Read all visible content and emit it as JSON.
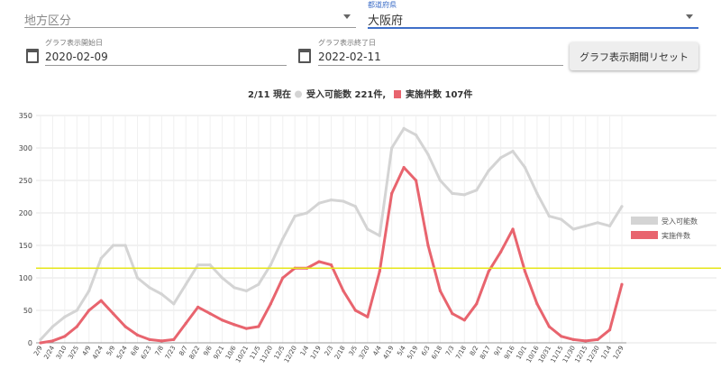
{
  "form": {
    "region": "地方区分",
    "prefecture_label": "都道府県",
    "prefecture": "大阪府",
    "start_label": "グラフ表示開始日",
    "start": "2020-02-09",
    "end_label": "グラフ表示終了日",
    "end": "2022-02-11",
    "reset_button": "グラフ表示期間リセット"
  },
  "chart_data": {
    "type": "line",
    "title": "2/11 現在",
    "summary": [
      "受入可能数 221件,",
      "実施件数 107件"
    ],
    "categories": [
      "2/9",
      "2/24",
      "3/10",
      "3/25",
      "4/9",
      "4/24",
      "5/9",
      "5/24",
      "6/8",
      "6/23",
      "7/8",
      "7/23",
      "8/7",
      "8/22",
      "9/6",
      "9/21",
      "10/6",
      "10/21",
      "11/5",
      "11/20",
      "12/5",
      "12/20",
      "1/4",
      "1/19",
      "2/3",
      "2/18",
      "3/5",
      "3/20",
      "4/4",
      "4/19",
      "5/4",
      "5/19",
      "6/3",
      "6/18",
      "7/3",
      "7/18",
      "8/2",
      "8/17",
      "9/1",
      "9/16",
      "10/1",
      "10/16",
      "10/31",
      "11/15",
      "11/30",
      "12/15",
      "12/30",
      "1/14",
      "1/29"
    ],
    "series": [
      {
        "name": "受入可能数",
        "color": "#d4d4d4",
        "values": [
          5,
          25,
          40,
          50,
          80,
          130,
          150,
          150,
          100,
          85,
          75,
          60,
          90,
          120,
          120,
          100,
          85,
          80,
          90,
          120,
          160,
          195,
          200,
          215,
          220,
          218,
          210,
          175,
          165,
          300,
          330,
          320,
          290,
          250,
          230,
          228,
          235,
          265,
          285,
          295,
          270,
          230,
          195,
          190,
          175,
          180,
          185,
          180,
          210
        ]
      },
      {
        "name": "実施件数",
        "color": "#e8646e",
        "values": [
          0,
          3,
          10,
          25,
          50,
          65,
          45,
          25,
          12,
          5,
          3,
          5,
          30,
          55,
          45,
          35,
          28,
          22,
          25,
          60,
          100,
          115,
          115,
          125,
          120,
          80,
          50,
          40,
          110,
          230,
          270,
          250,
          150,
          80,
          45,
          35,
          60,
          110,
          140,
          175,
          110,
          60,
          25,
          10,
          5,
          3,
          5,
          20,
          90
        ]
      }
    ],
    "reference_line": {
      "value": 115,
      "color": "#e6e61a"
    },
    "ylim": [
      0,
      350
    ],
    "yticks": [
      0,
      50,
      100,
      150,
      200,
      250,
      300,
      350
    ],
    "grid": true
  }
}
